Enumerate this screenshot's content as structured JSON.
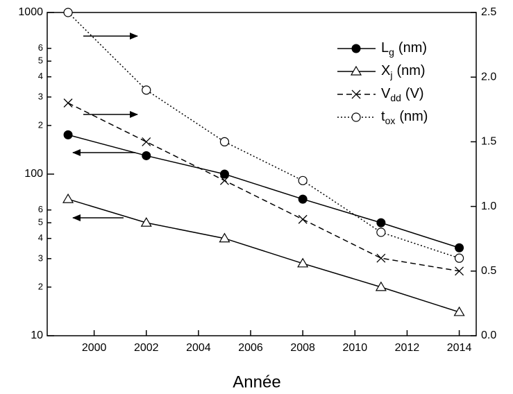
{
  "chart_data": {
    "type": "line",
    "x_label": "Année",
    "x": [
      1999,
      2002,
      2005,
      2008,
      2011,
      2014
    ],
    "xlim": [
      1998.2,
      2014.65
    ],
    "xticks": [
      2000,
      2002,
      2004,
      2006,
      2008,
      2010,
      2012,
      2014
    ],
    "ylim": [
      10,
      1000
    ],
    "log_y": true,
    "yticks": [
      10,
      {
        "value": 20,
        "label": "2"
      },
      {
        "value": 30,
        "label": "3"
      },
      {
        "value": 40,
        "label": "4"
      },
      {
        "value": 50,
        "label": "5"
      },
      {
        "value": 60,
        "label": "6"
      },
      100,
      {
        "value": 200,
        "label": "2"
      },
      {
        "value": 300,
        "label": "3"
      },
      {
        "value": 400,
        "label": "4"
      },
      {
        "value": 500,
        "label": "5"
      },
      {
        "value": 600,
        "label": "6"
      },
      1000
    ],
    "y2lim": [
      0,
      2.5
    ],
    "y2ticks": [
      {
        "value": 0,
        "label": "0.0"
      },
      0.5,
      {
        "value": 1,
        "label": "1.0"
      },
      1.5,
      {
        "value": 2,
        "label": "2.0"
      },
      2.5
    ],
    "legend": "top-right",
    "series": [
      {
        "name": "L",
        "sub": "g",
        "unit": "(nm)",
        "color": "#000000",
        "style": "solid",
        "marker": "filled-circle",
        "values": [
          175,
          130,
          100,
          70,
          50,
          35
        ]
      },
      {
        "name": "X",
        "sub": "j",
        "unit": "(nm)",
        "color": "#000000",
        "style": "solid",
        "marker": "open-triangle",
        "values": [
          70,
          50,
          40,
          28,
          20,
          14
        ]
      },
      {
        "name": "V",
        "sub": "dd",
        "unit": "(V)",
        "color": "#000000",
        "style": "dashed",
        "marker": "cross",
        "axis": "y2",
        "values": [
          1.8,
          1.5,
          1.2,
          0.9,
          0.6,
          0.5
        ]
      },
      {
        "name": "t",
        "sub": "ox",
        "unit": "(nm)",
        "color": "#000000",
        "style": "dotted",
        "marker": "open-circle",
        "axis": "y2",
        "values": [
          2.5,
          1.9,
          1.5,
          1.2,
          0.8,
          0.6
        ]
      }
    ]
  }
}
